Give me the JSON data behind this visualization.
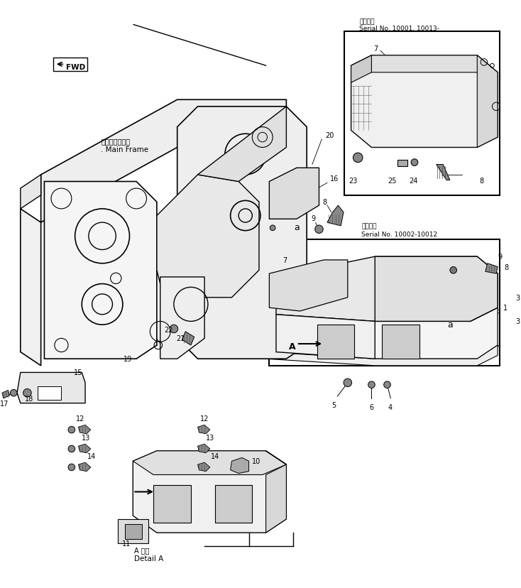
{
  "bg_color": "#ffffff",
  "line_color": "#000000",
  "fig_width": 7.34,
  "fig_height": 8.29,
  "dpi": 100,
  "serial1_line1": "適用号機",
  "serial1_line2": "Serial No. 10001, 10013-",
  "serial2_line1": "適用号機",
  "serial2_line2": "Serial No. 10002-10012",
  "label_main_frame_jp": "メインフレーム",
  "label_main_frame_en": ". Main Frame",
  "label_fwd": "FWD",
  "label_detail_a_jp": "A 詳細",
  "label_detail_a_en": "Detail A"
}
